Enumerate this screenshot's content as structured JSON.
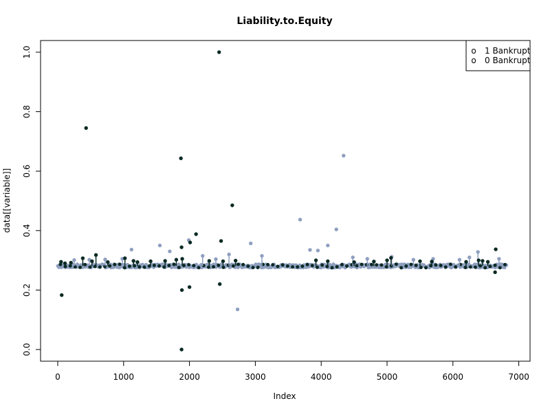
{
  "chart_data": {
    "type": "scatter",
    "title": "Liability.to.Equity",
    "xlabel": "Index",
    "ylabel": "data[[variable]]",
    "xlim": [
      0,
      7000
    ],
    "ylim": [
      0,
      1.0
    ],
    "x_ticks": [
      "0",
      "1000",
      "2000",
      "3000",
      "4000",
      "5000",
      "6000",
      "7000"
    ],
    "y_ticks": [
      "0.0",
      "0.2",
      "0.4",
      "0.6",
      "0.8",
      "1.0"
    ],
    "legend": {
      "position": "top-right",
      "entries": [
        {
          "symbol": "o",
          "label": "1 Bankrupt"
        },
        {
          "symbol": "o",
          "label": "0 Bankrupt"
        }
      ]
    },
    "colors": {
      "bankrupt_1": "#0b2a24",
      "bankrupt_0": "#8f9fbf"
    },
    "baseline": {
      "x_range": [
        0,
        6819
      ],
      "y_center": 0.281,
      "y_spread": 0.006
    },
    "series": [
      {
        "name": "1 Bankrupt",
        "x": [
          50,
          60,
          110,
          200,
          380,
          430,
          520,
          580,
          760,
          1020,
          1150,
          1210,
          1410,
          1630,
          1800,
          1870,
          1880,
          1885,
          1880,
          1890,
          2000,
          2010,
          2100,
          2300,
          2450,
          2460,
          2480,
          2510,
          2650,
          2700,
          3920,
          4100,
          4500,
          4800,
          5000,
          5060,
          5500,
          5680,
          6200,
          6390,
          6450,
          6530,
          6640,
          6650
        ],
        "y": [
          0.295,
          0.183,
          0.29,
          0.292,
          0.307,
          0.745,
          0.297,
          0.318,
          0.294,
          0.307,
          0.298,
          0.294,
          0.297,
          0.298,
          0.302,
          0.643,
          0.344,
          0.2,
          0.0,
          0.305,
          0.21,
          0.36,
          0.388,
          0.298,
          1.0,
          0.22,
          0.365,
          0.297,
          0.485,
          0.299,
          0.3,
          0.297,
          0.294,
          0.296,
          0.3,
          0.308,
          0.297,
          0.296,
          0.295,
          0.3,
          0.298,
          0.295,
          0.26,
          0.337
        ]
      },
      {
        "name": "0 Bankrupt",
        "x": [
          250,
          480,
          720,
          980,
          1120,
          1550,
          1700,
          1990,
          2200,
          2400,
          2600,
          2730,
          2930,
          3100,
          3680,
          3830,
          3950,
          4100,
          4230,
          4340,
          4480,
          4700,
          5070,
          5400,
          5700,
          6100,
          6250,
          6380,
          6700
        ],
        "y": [
          0.301,
          0.302,
          0.303,
          0.305,
          0.336,
          0.35,
          0.33,
          0.368,
          0.315,
          0.304,
          0.32,
          0.135,
          0.357,
          0.315,
          0.437,
          0.335,
          0.333,
          0.35,
          0.404,
          0.652,
          0.31,
          0.305,
          0.312,
          0.302,
          0.305,
          0.302,
          0.31,
          0.328,
          0.305
        ]
      }
    ]
  }
}
